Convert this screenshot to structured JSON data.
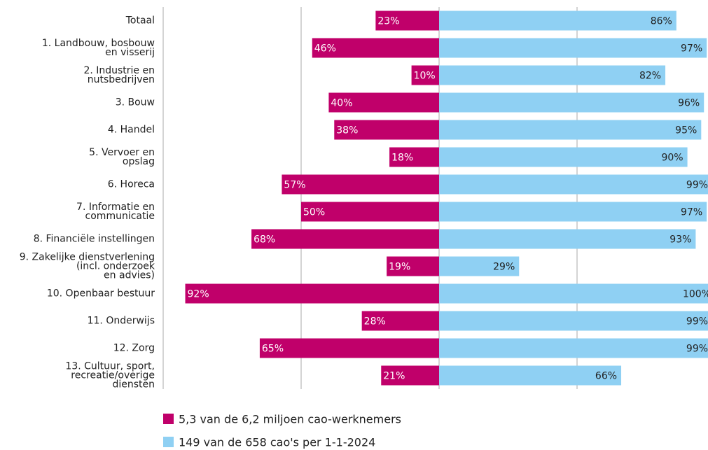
{
  "chart_data": {
    "type": "diverging_bar",
    "categories": [
      "Totaal",
      "1. Landbouw, bosbouw\nen visserij",
      "2. Industrie en\nnutsbedrijven",
      "3. Bouw",
      "4. Handel",
      "5. Vervoer en\nopslag",
      "6. Horeca",
      "7. Informatie en\ncommunicatie",
      "8. Financiële instellingen",
      "9. Zakelijke dienstverlening\n(incl. onderzoek\nen advies)",
      "10. Openbaar bestuur",
      "11. Onderwijs",
      "12. Zorg",
      "13. Cultuur, sport,\nrecreatie/overige\ndiensten"
    ],
    "series": [
      {
        "name": "5,3 van de 6,2 miljoen cao-werknemers",
        "color": "#c0006a",
        "side": "left",
        "values": [
          23,
          46,
          10,
          40,
          38,
          18,
          57,
          50,
          68,
          19,
          92,
          28,
          65,
          21
        ],
        "value_labels": [
          "23%",
          "46%",
          "10%",
          "40%",
          "38%",
          "18%",
          "57%",
          "50%",
          "68%",
          "19%",
          "92%",
          "28%",
          "65%",
          "21%"
        ]
      },
      {
        "name": "149 van de 658 cao's per 1-1-2024",
        "color": "#8fd0f3",
        "side": "right",
        "values": [
          86,
          97,
          82,
          96,
          95,
          90,
          99,
          97,
          93,
          29,
          100,
          99,
          99,
          66
        ],
        "value_labels": [
          "86%",
          "97%",
          "82%",
          "96%",
          "95%",
          "90%",
          "99%",
          "97%",
          "93%",
          "29%",
          "100%",
          "99%",
          "99%",
          "66%"
        ]
      }
    ],
    "xlim": [
      -100,
      100
    ],
    "xticks": [
      -50,
      0,
      50
    ],
    "grid": true
  }
}
